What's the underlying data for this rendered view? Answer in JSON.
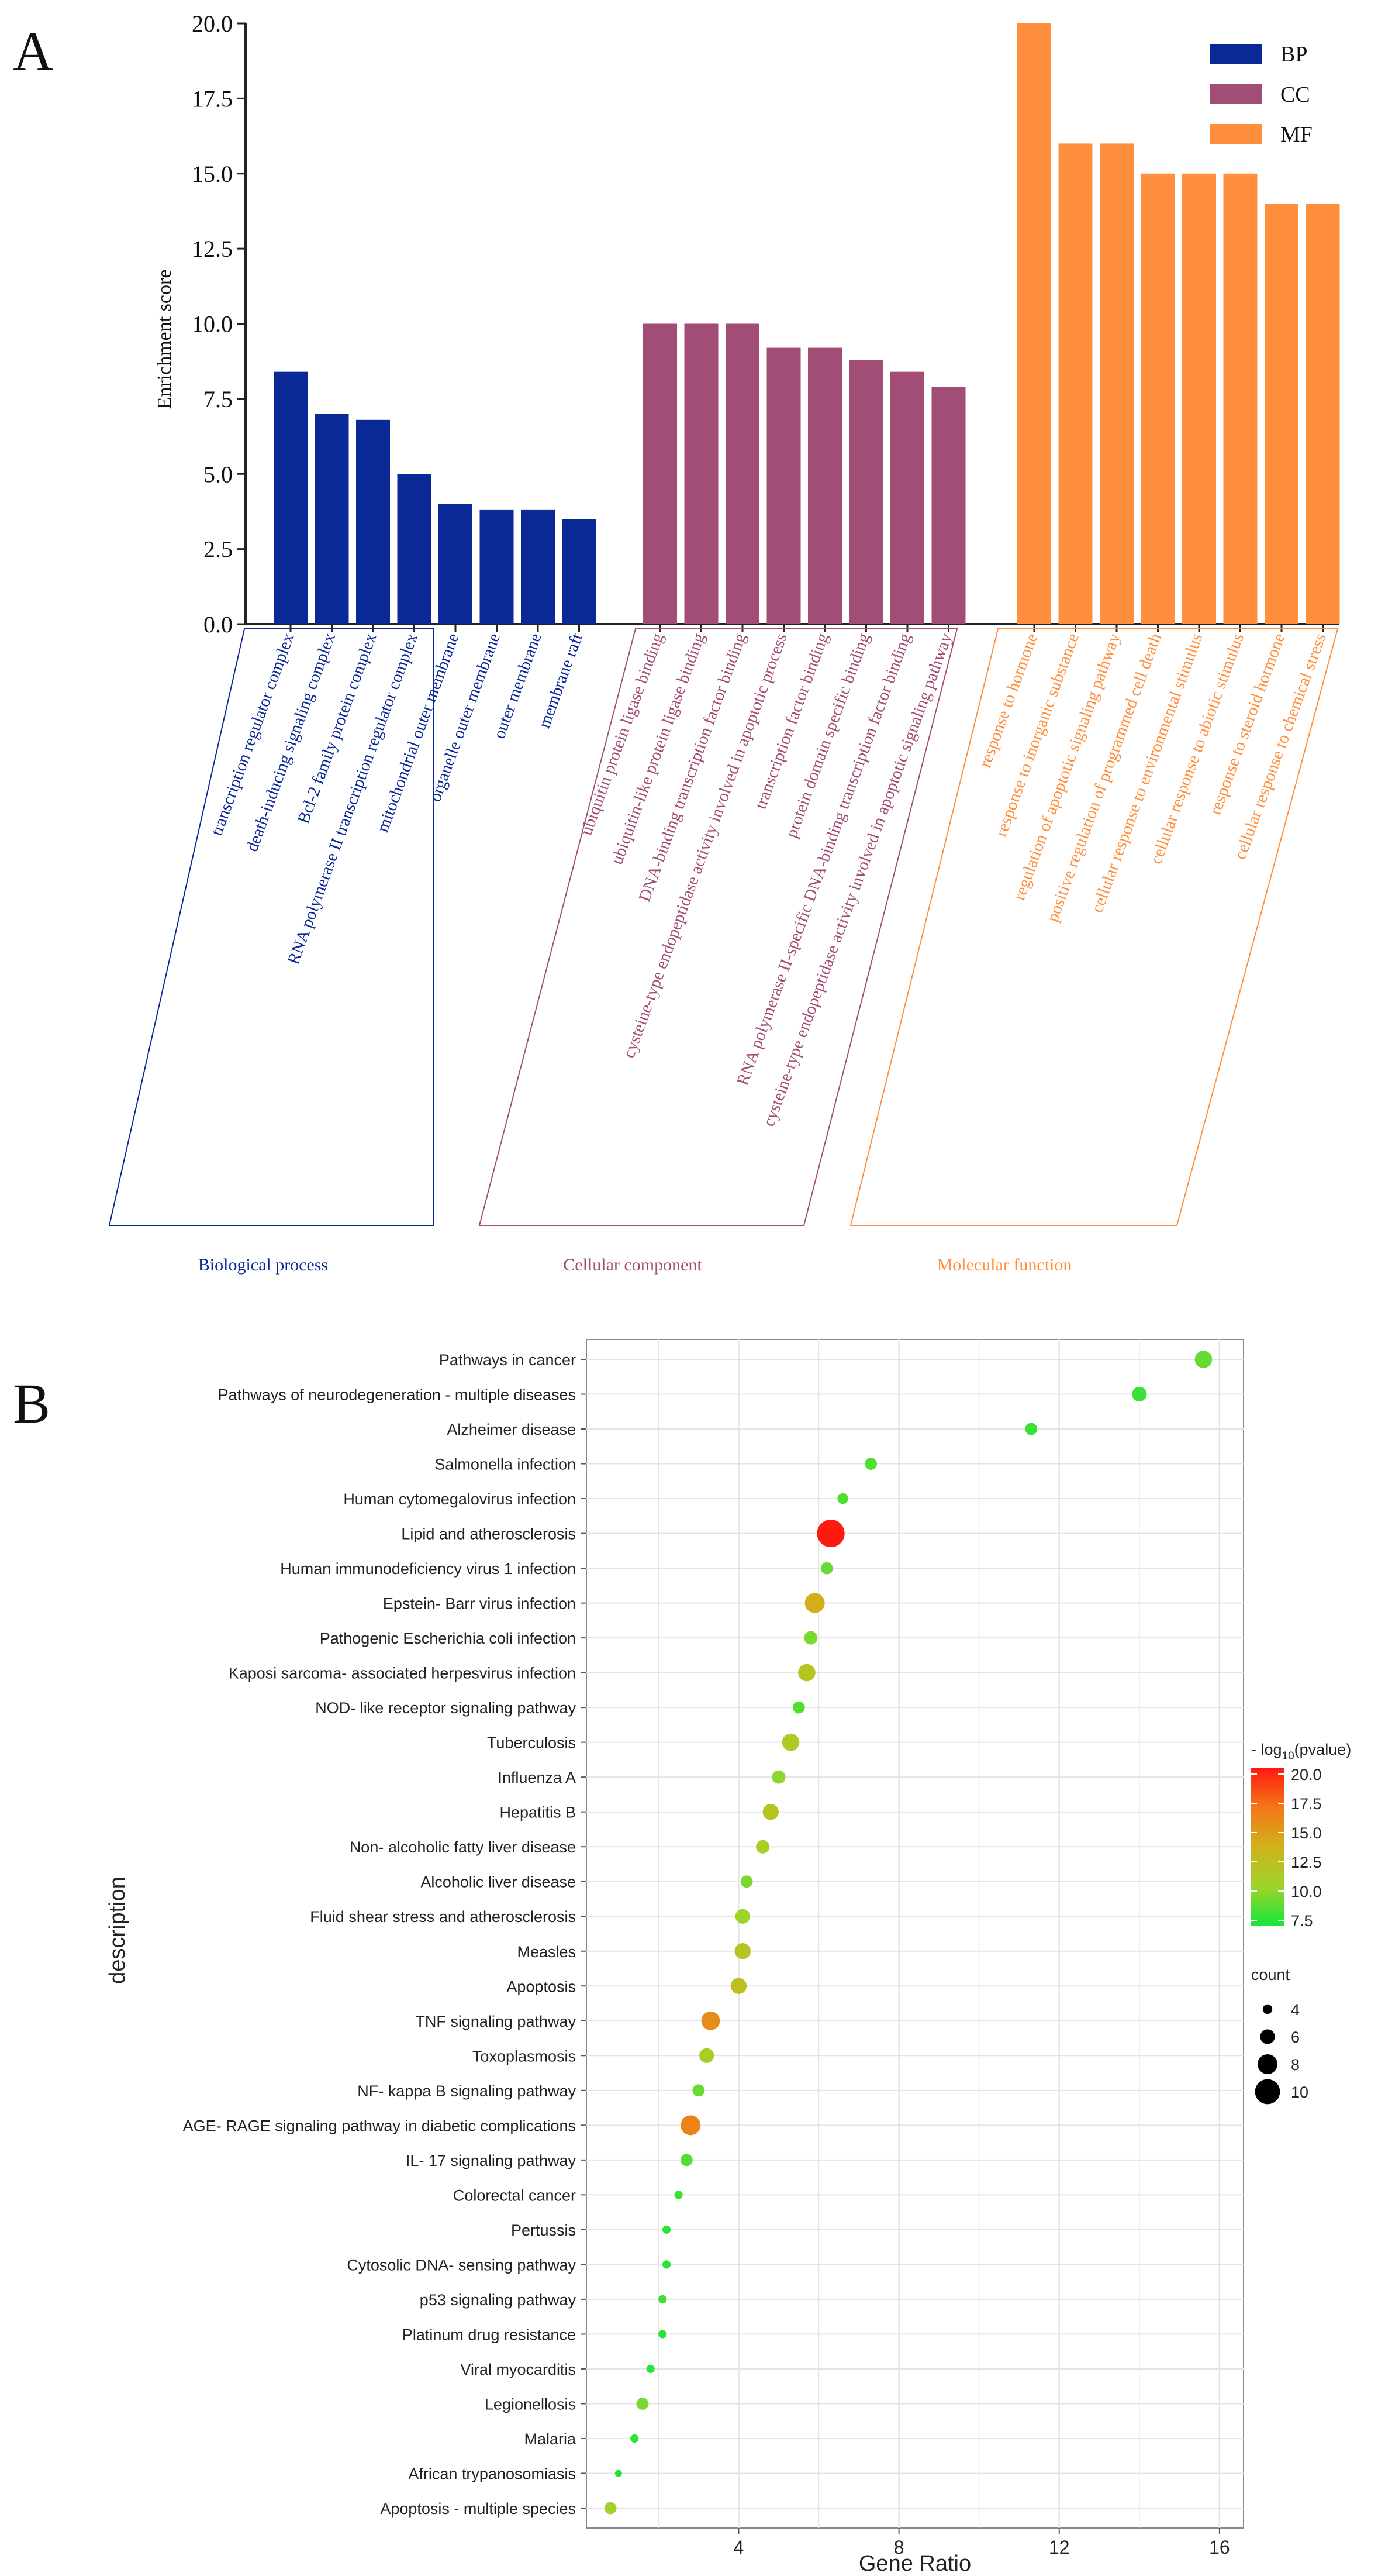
{
  "panel_labels": {
    "a": "A",
    "b": "B"
  },
  "colors": {
    "bp": "#0a2896",
    "cc": "#a24d76",
    "mf": "#ff8f3c",
    "scale": [
      "#14e63a",
      "#9ed42a",
      "#d0b21a",
      "#f37818",
      "#ff1a10"
    ]
  },
  "chart_data": [
    {
      "type": "bar",
      "title": "",
      "xlabel": "",
      "ylabel": "Enrichment score",
      "ylim": [
        0,
        20
      ],
      "yticks": [
        "0.0",
        "2.5",
        "5.0",
        "7.5",
        "10.0",
        "12.5",
        "15.0",
        "17.5",
        "20.0"
      ],
      "legend": {
        "position": "top-right",
        "entries": [
          "BP",
          "CC",
          "MF"
        ]
      },
      "groups": [
        {
          "key": "bp",
          "legend": "BP",
          "label": "Biological process",
          "categories": [
            "transcription regulator complex",
            "death-inducing signaling complex",
            "Bcl-2 family protein complex",
            "RNA polymerase II transcription regulator complex",
            "mitochondrial outer membrane",
            "organelle outer membrane",
            "outer membrane",
            "membrane raft"
          ],
          "values": [
            8.4,
            7.0,
            6.8,
            5.0,
            4.0,
            3.8,
            3.8,
            3.5
          ]
        },
        {
          "key": "cc",
          "legend": "CC",
          "label": "Cellular component",
          "categories": [
            "ubiquitin protein ligase binding",
            "ubiquitin-like protein ligase binding",
            "DNA-binding transcription factor binding",
            "cysteine-type endopeptidase activity involved in apoptotic process",
            "transcription factor binding",
            "protein domain specific binding",
            "RNA polymerase II-specific DNA-binding transcription factor binding",
            "cysteine-type endopeptidase activity involved in apoptotic signaling pathway"
          ],
          "values": [
            10.0,
            10.0,
            10.0,
            9.2,
            9.2,
            8.8,
            8.4,
            7.9
          ]
        },
        {
          "key": "mf",
          "legend": "MF",
          "label": "Molecular function",
          "categories": [
            "response to hormone",
            "response to inorganic substance",
            "regulation of apoptotic signaling pathway",
            "positive regulation of programmed cell death",
            "cellular response to environmental stimulus",
            "cellular response to abiotic stimulus",
            "response to steroid hormone",
            "cellular response to chemical stress"
          ],
          "values": [
            20.0,
            16.0,
            16.0,
            15.0,
            15.0,
            15.0,
            14.0,
            14.0
          ]
        }
      ]
    },
    {
      "type": "scatter",
      "title": "",
      "xlabel": "Gene Ratio",
      "ylabel": "description",
      "xlim": [
        0.2,
        16.6
      ],
      "xticks": [
        4,
        8,
        12,
        16
      ],
      "grid": true,
      "color_legend": {
        "title_prefix": "- log",
        "title_sub": "10",
        "title_suffix": "(pvalue)",
        "range": [
          7.0,
          20.5
        ],
        "ticks": [
          "20.0",
          "17.5",
          "15.0",
          "12.5",
          "10.0",
          "7.5"
        ]
      },
      "size_legend": {
        "title": "count",
        "values": [
          "4",
          "6",
          "8",
          "10"
        ]
      },
      "points": [
        {
          "label": "Pathways in cancer",
          "x": 15.6,
          "count": 7,
          "p": 9.0
        },
        {
          "label": "Pathways of neurodegeneration -  multiple diseases",
          "x": 14.0,
          "count": 6,
          "p": 8.0
        },
        {
          "label": "Alzheimer disease",
          "x": 11.3,
          "count": 5,
          "p": 8.0
        },
        {
          "label": "Salmonella infection",
          "x": 7.3,
          "count": 5,
          "p": 8.5
        },
        {
          "label": "Human cytomegalovirus infection",
          "x": 6.6,
          "count": 4.5,
          "p": 8.5
        },
        {
          "label": "Lipid and atherosclerosis",
          "x": 6.3,
          "count": 11,
          "p": 20.5
        },
        {
          "label": "Human immunodeficiency virus 1 infection",
          "x": 6.2,
          "count": 5,
          "p": 9.0
        },
        {
          "label": "Epstein- Barr virus infection",
          "x": 5.9,
          "count": 8,
          "p": 14.0
        },
        {
          "label": "Pathogenic Escherichia coli infection",
          "x": 5.8,
          "count": 5.5,
          "p": 9.5
        },
        {
          "label": "Kaposi sarcoma- associated herpesvirus infection",
          "x": 5.7,
          "count": 7,
          "p": 12.0
        },
        {
          "label": "NOD- like receptor signaling pathway",
          "x": 5.5,
          "count": 5,
          "p": 8.5
        },
        {
          "label": "Tuberculosis",
          "x": 5.3,
          "count": 7,
          "p": 11.5
        },
        {
          "label": "Influenza A",
          "x": 5.0,
          "count": 5.5,
          "p": 10.0
        },
        {
          "label": "Hepatitis B",
          "x": 4.8,
          "count": 6.5,
          "p": 12.0
        },
        {
          "label": "Non- alcoholic fatty liver disease",
          "x": 4.6,
          "count": 5.5,
          "p": 11.0
        },
        {
          "label": "Alcoholic liver disease",
          "x": 4.2,
          "count": 5,
          "p": 9.5
        },
        {
          "label": "Fluid shear stress and atherosclerosis",
          "x": 4.1,
          "count": 6,
          "p": 10.5
        },
        {
          "label": "Measles",
          "x": 4.1,
          "count": 6.5,
          "p": 12.0
        },
        {
          "label": "Apoptosis",
          "x": 4.0,
          "count": 6.5,
          "p": 12.5
        },
        {
          "label": "TNF signaling pathway",
          "x": 3.3,
          "count": 7.5,
          "p": 16.0
        },
        {
          "label": "Toxoplasmosis",
          "x": 3.2,
          "count": 6,
          "p": 11.0
        },
        {
          "label": "NF- kappa B signaling pathway",
          "x": 3.0,
          "count": 5,
          "p": 9.0
        },
        {
          "label": "AGE- RAGE signaling pathway in diabetic complications",
          "x": 2.8,
          "count": 8,
          "p": 16.5
        },
        {
          "label": "IL- 17 signaling pathway",
          "x": 2.7,
          "count": 5,
          "p": 8.5
        },
        {
          "label": "Colorectal cancer",
          "x": 2.5,
          "count": 3.5,
          "p": 8.0
        },
        {
          "label": "Pertussis",
          "x": 2.2,
          "count": 3.5,
          "p": 7.5
        },
        {
          "label": "Cytosolic DNA- sensing pathway",
          "x": 2.2,
          "count": 3.5,
          "p": 7.5
        },
        {
          "label": "p53 signaling pathway",
          "x": 2.1,
          "count": 3.5,
          "p": 8.0
        },
        {
          "label": "Platinum drug resistance",
          "x": 2.1,
          "count": 3.5,
          "p": 7.5
        },
        {
          "label": "Viral myocarditis",
          "x": 1.8,
          "count": 3.5,
          "p": 7.5
        },
        {
          "label": "Legionellosis",
          "x": 1.6,
          "count": 5,
          "p": 9.5
        },
        {
          "label": "Malaria",
          "x": 1.4,
          "count": 3.5,
          "p": 7.5
        },
        {
          "label": "African trypanosomiasis",
          "x": 1.0,
          "count": 3,
          "p": 7.5
        },
        {
          "label": "Apoptosis -  multiple species",
          "x": 0.8,
          "count": 5,
          "p": 10.5
        }
      ]
    }
  ]
}
